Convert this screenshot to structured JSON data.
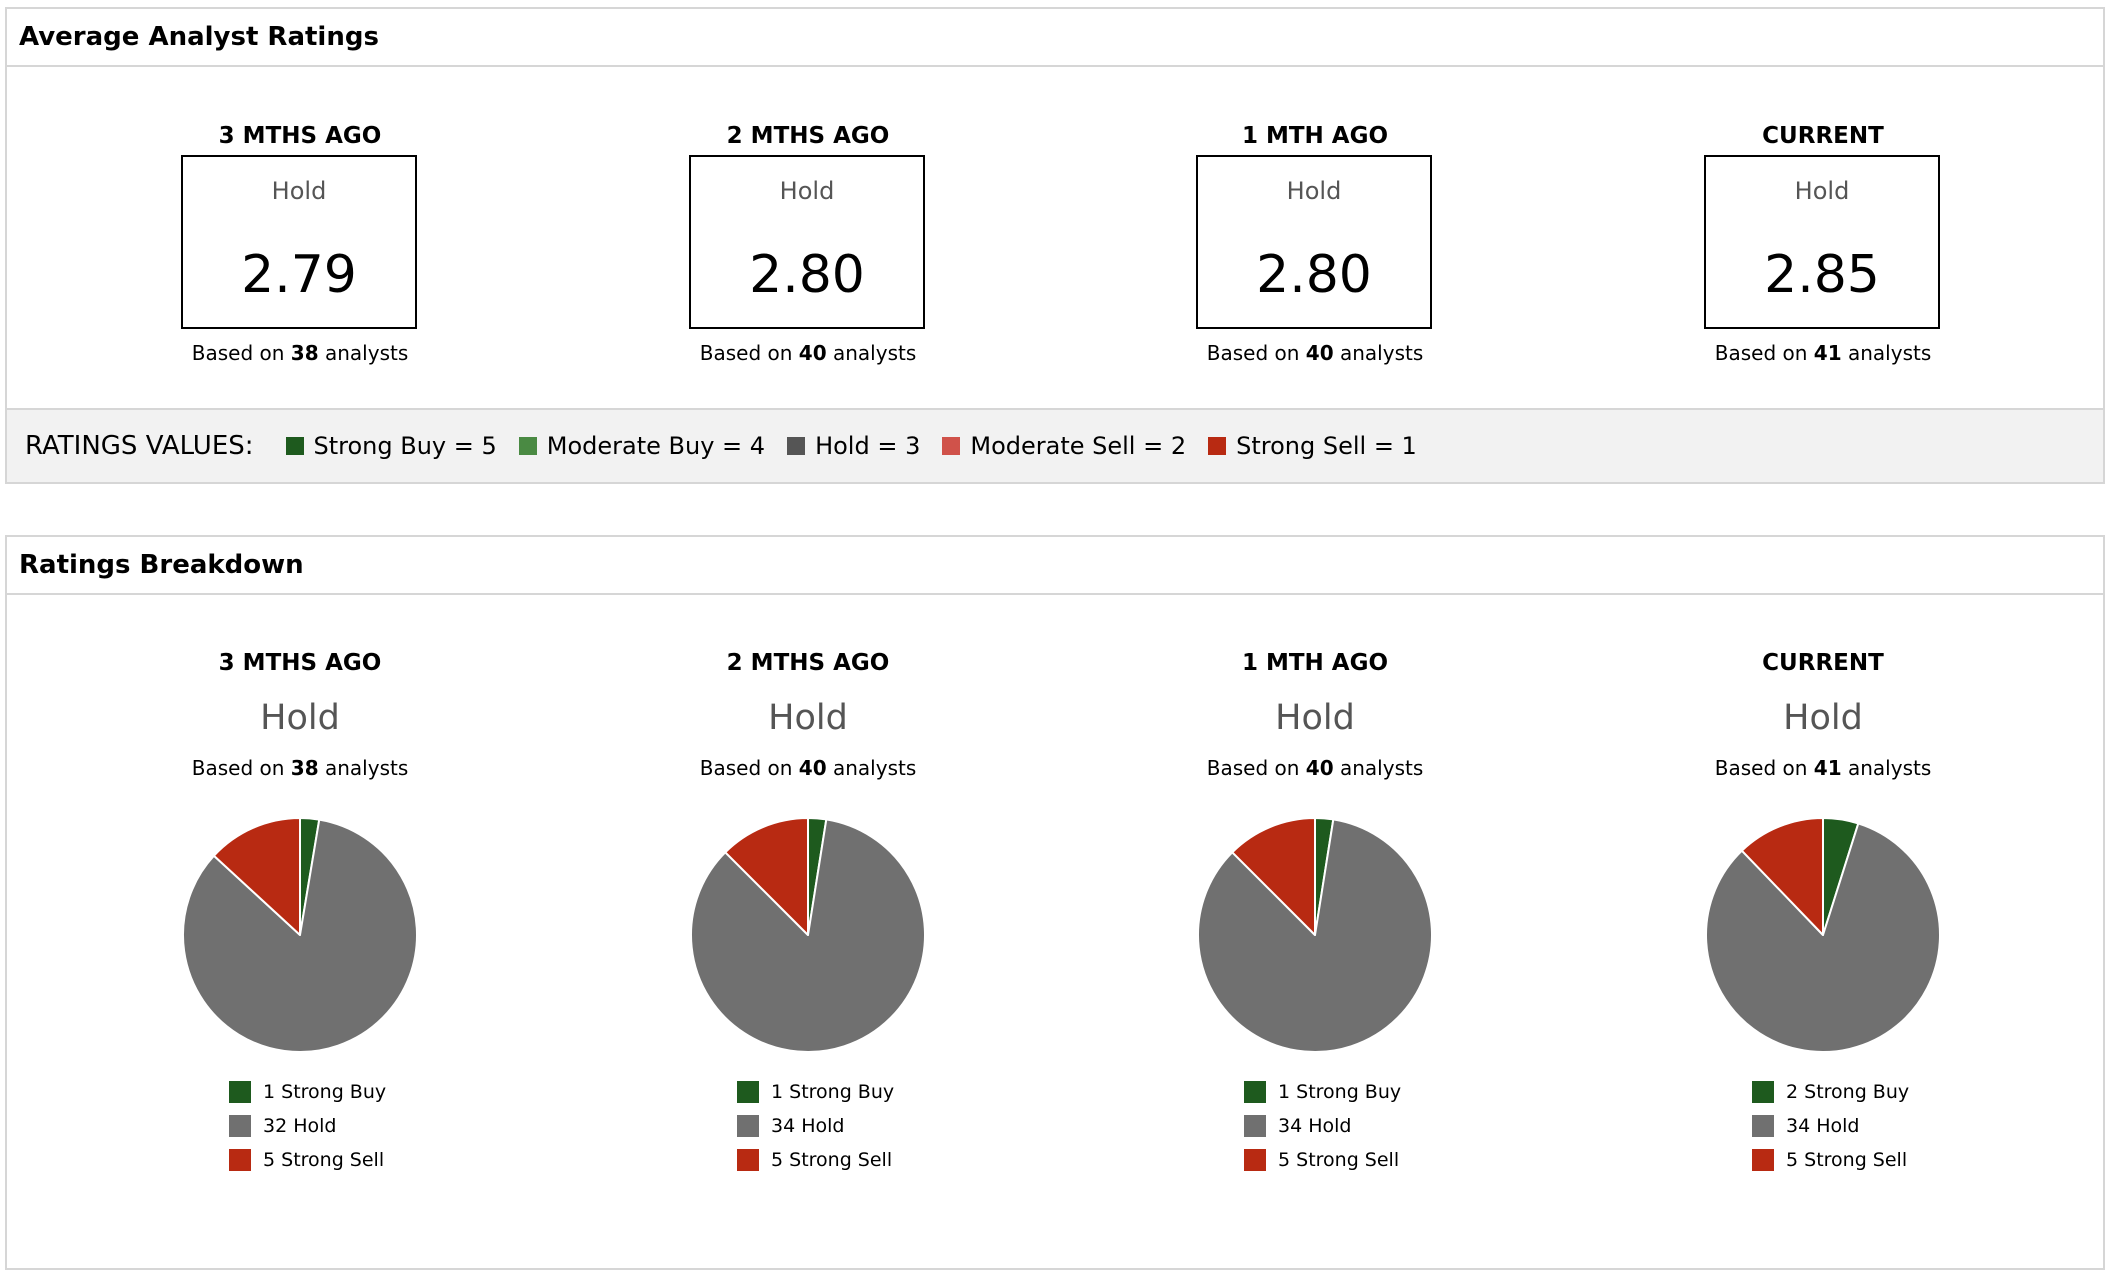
{
  "average_panel": {
    "title": "Average Analyst Ratings",
    "columns": [
      {
        "period": "3 MTHS AGO",
        "rating": "Hold",
        "score": "2.79",
        "based_prefix": "Based on",
        "analysts": "38",
        "based_suffix": "analysts"
      },
      {
        "period": "2 MTHS AGO",
        "rating": "Hold",
        "score": "2.80",
        "based_prefix": "Based on",
        "analysts": "40",
        "based_suffix": "analysts"
      },
      {
        "period": "1 MTH AGO",
        "rating": "Hold",
        "score": "2.80",
        "based_prefix": "Based on",
        "analysts": "40",
        "based_suffix": "analysts"
      },
      {
        "period": "CURRENT",
        "rating": "Hold",
        "score": "2.85",
        "based_prefix": "Based on",
        "analysts": "41",
        "based_suffix": "analysts"
      }
    ],
    "legend": {
      "title": "RATINGS VALUES:",
      "items": [
        {
          "label": "Strong Buy = 5",
          "color": "#1e5a1e"
        },
        {
          "label": "Moderate Buy = 4",
          "color": "#4a8a43"
        },
        {
          "label": "Hold = 3",
          "color": "#555555"
        },
        {
          "label": "Moderate Sell = 2",
          "color": "#d0524a"
        },
        {
          "label": "Strong Sell = 1",
          "color": "#b82a12"
        }
      ]
    }
  },
  "breakdown_panel": {
    "title": "Ratings Breakdown",
    "columns": [
      {
        "period": "3 MTHS AGO",
        "rating": "Hold",
        "based_prefix": "Based on",
        "analysts": "38",
        "based_suffix": "analysts",
        "legend": [
          "1 Strong Buy",
          "32 Hold",
          "5 Strong Sell"
        ]
      },
      {
        "period": "2 MTHS AGO",
        "rating": "Hold",
        "based_prefix": "Based on",
        "analysts": "40",
        "based_suffix": "analysts",
        "legend": [
          "1 Strong Buy",
          "34 Hold",
          "5 Strong Sell"
        ]
      },
      {
        "period": "1 MTH AGO",
        "rating": "Hold",
        "based_prefix": "Based on",
        "analysts": "40",
        "based_suffix": "analysts",
        "legend": [
          "1 Strong Buy",
          "34 Hold",
          "5 Strong Sell"
        ]
      },
      {
        "period": "CURRENT",
        "rating": "Hold",
        "based_prefix": "Based on",
        "analysts": "41",
        "based_suffix": "analysts",
        "legend": [
          "2 Strong Buy",
          "34 Hold",
          "5 Strong Sell"
        ]
      }
    ]
  },
  "chart_data": [
    {
      "type": "pie",
      "categories": [
        "Strong Buy",
        "Hold",
        "Strong Sell"
      ],
      "values": [
        1,
        32,
        5
      ],
      "colors": [
        "#1e5a1e",
        "#707070",
        "#b82a12"
      ]
    },
    {
      "type": "pie",
      "categories": [
        "Strong Buy",
        "Hold",
        "Strong Sell"
      ],
      "values": [
        1,
        34,
        5
      ],
      "colors": [
        "#1e5a1e",
        "#707070",
        "#b82a12"
      ]
    },
    {
      "type": "pie",
      "categories": [
        "Strong Buy",
        "Hold",
        "Strong Sell"
      ],
      "values": [
        1,
        34,
        5
      ],
      "colors": [
        "#1e5a1e",
        "#707070",
        "#b82a12"
      ]
    },
    {
      "type": "pie",
      "categories": [
        "Strong Buy",
        "Hold",
        "Strong Sell"
      ],
      "values": [
        2,
        34,
        5
      ],
      "colors": [
        "#1e5a1e",
        "#707070",
        "#b82a12"
      ]
    }
  ]
}
